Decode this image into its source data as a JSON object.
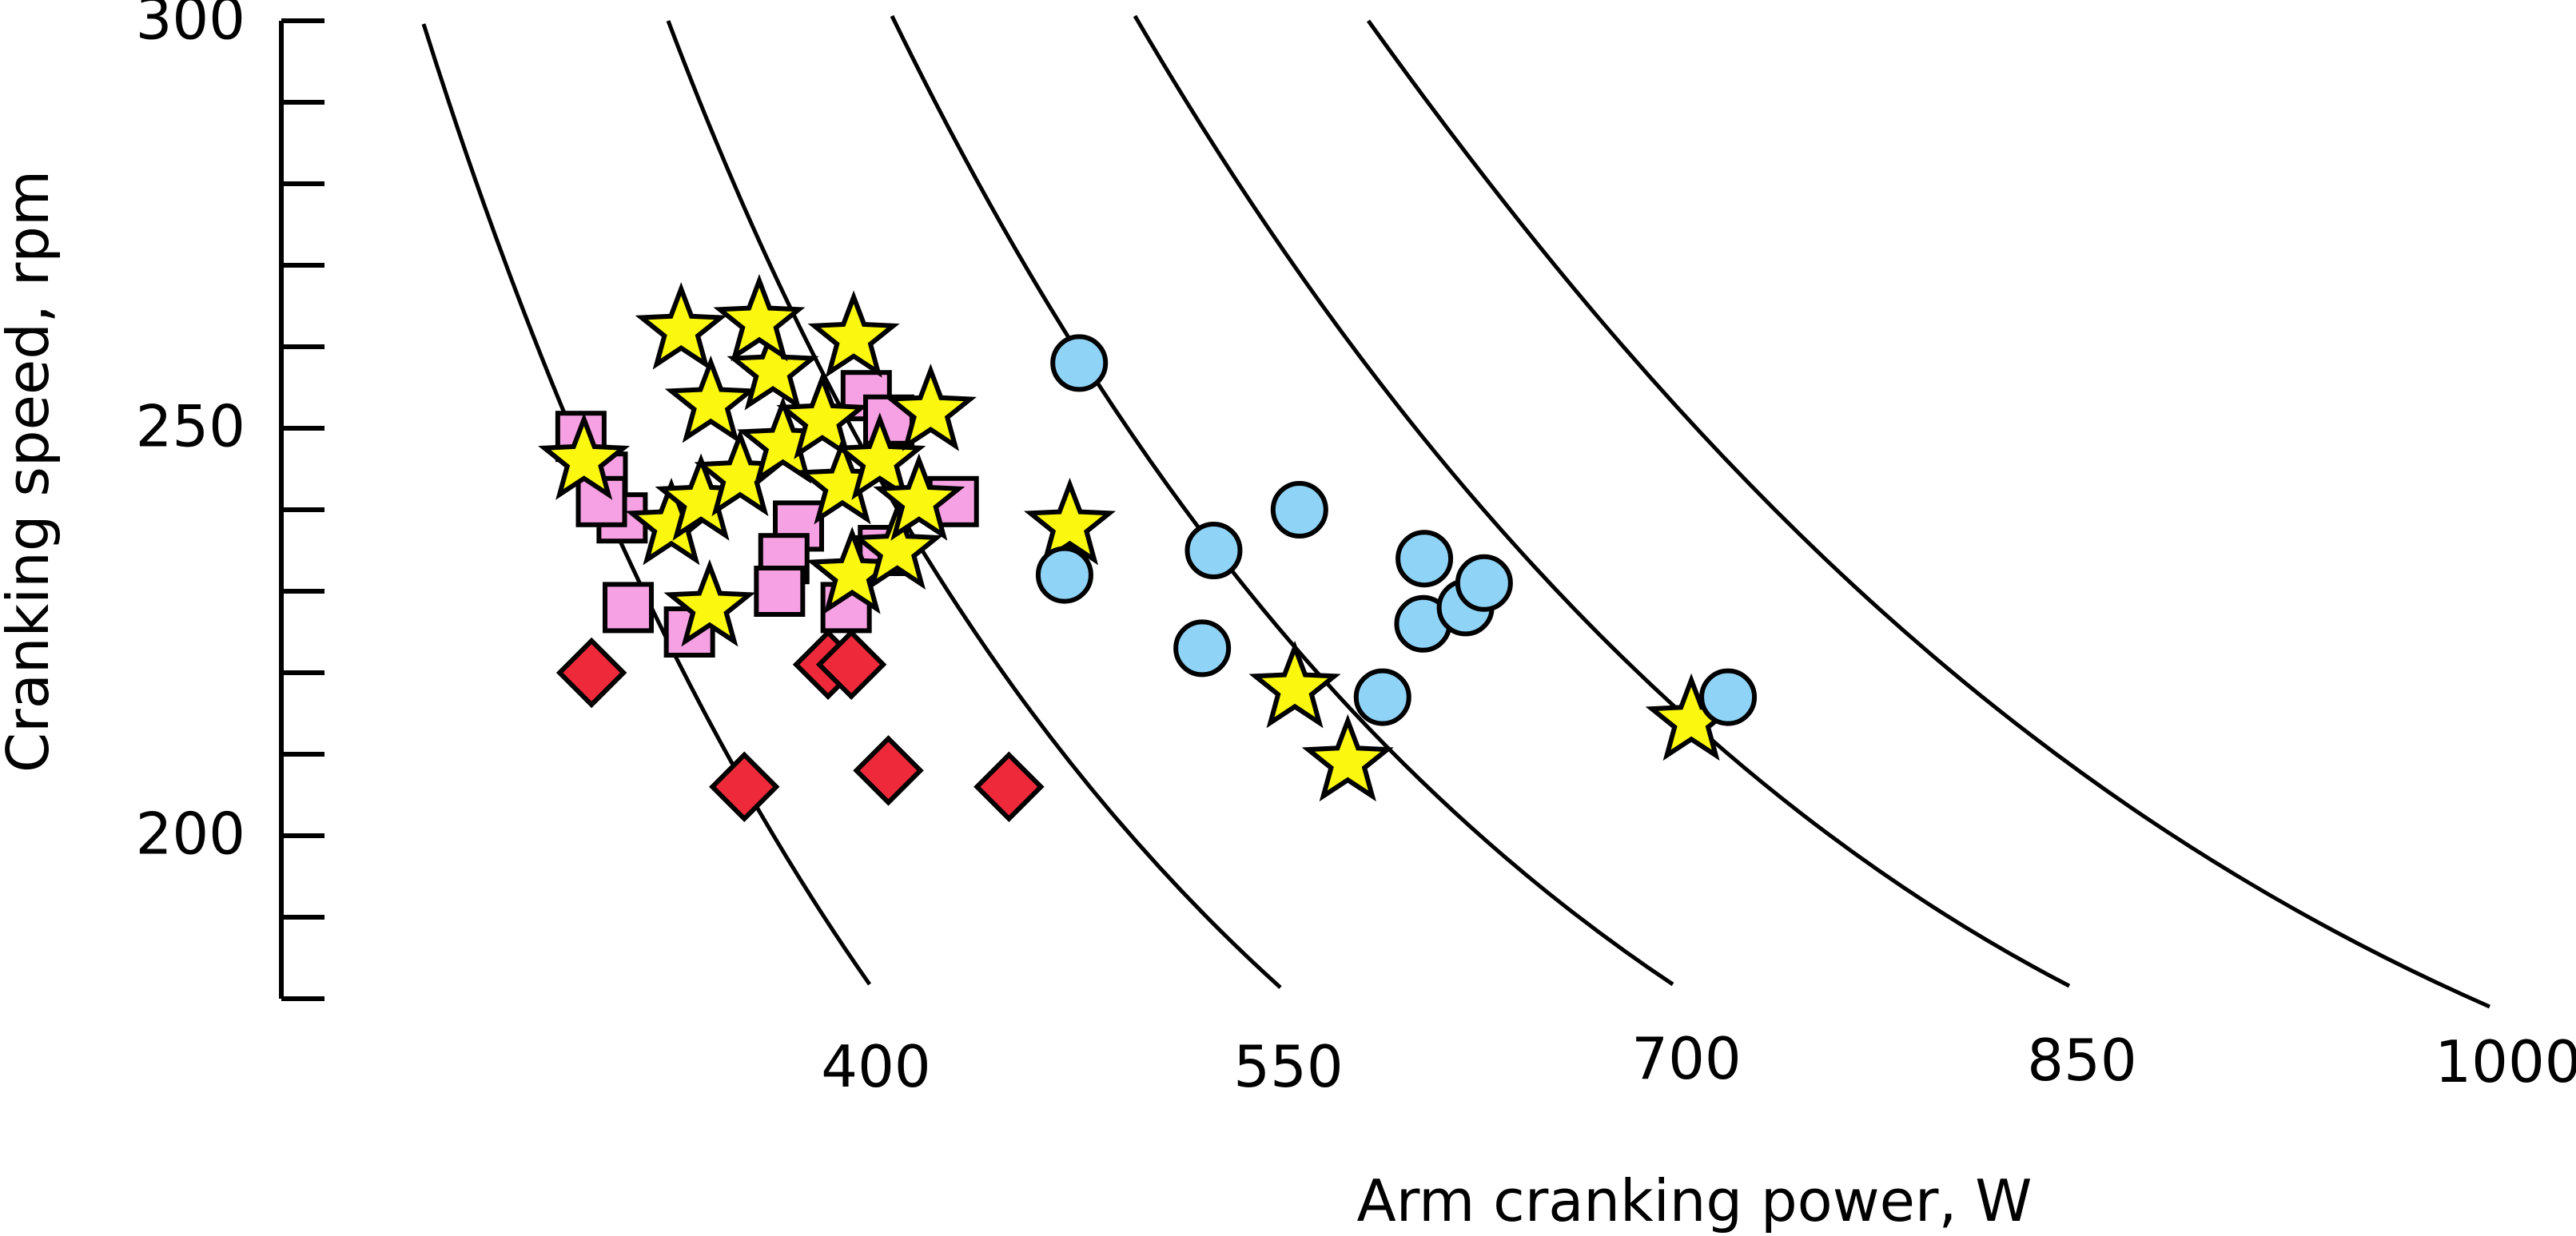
{
  "chart_data": {
    "type": "scatter",
    "title": "",
    "xlabel": "Arm cranking power, W",
    "ylabel": "Cranking speed, rpm",
    "ylim": [
      180,
      300
    ],
    "y_major_ticks": [
      "200",
      "250",
      "300"
    ],
    "y_minor_step": 10,
    "isopower_labels": [
      "400",
      "550",
      "700",
      "850",
      "1000"
    ],
    "isopower_curves": [
      {
        "label": "400",
        "power_w": 400
      },
      {
        "label": "550",
        "power_w": 550
      },
      {
        "label": "700",
        "power_w": 700
      },
      {
        "label": "850",
        "power_w": 850
      },
      {
        "label": "1000",
        "power_w": 1000
      }
    ],
    "grid": false,
    "legend": "none",
    "series": [
      {
        "marker": "diamond",
        "color": "#ee2a3a",
        "points": [
          {
            "power_w": 356,
            "rpm": 220
          },
          {
            "power_w": 399,
            "rpm": 206
          },
          {
            "power_w": 470,
            "rpm": 221
          },
          {
            "power_w": 481,
            "rpm": 221
          },
          {
            "power_w": 467,
            "rpm": 208
          },
          {
            "power_w": 515,
            "rpm": 206
          }
        ]
      },
      {
        "marker": "square",
        "color": "#f6a1e3",
        "points": [
          {
            "power_w": 404,
            "rpm": 249
          },
          {
            "power_w": 405,
            "rpm": 244
          },
          {
            "power_w": 406,
            "rpm": 239
          },
          {
            "power_w": 400,
            "rpm": 241
          },
          {
            "power_w": 388,
            "rpm": 228
          },
          {
            "power_w": 413,
            "rpm": 225
          },
          {
            "power_w": 495,
            "rpm": 238
          },
          {
            "power_w": 478,
            "rpm": 234
          },
          {
            "power_w": 467,
            "rpm": 230
          },
          {
            "power_w": 495,
            "rpm": 228
          },
          {
            "power_w": 531,
            "rpm": 235
          },
          {
            "power_w": 567,
            "rpm": 254
          },
          {
            "power_w": 573,
            "rpm": 251
          },
          {
            "power_w": 581,
            "rpm": 241
          }
        ]
      },
      {
        "marker": "star",
        "color": "#fbf70f",
        "points": [
          {
            "power_w": 400,
            "rpm": 246
          },
          {
            "power_w": 430,
            "rpm": 238
          },
          {
            "power_w": 428,
            "rpm": 228
          },
          {
            "power_w": 451,
            "rpm": 241
          },
          {
            "power_w": 483,
            "rpm": 262
          },
          {
            "power_w": 481,
            "rpm": 253
          },
          {
            "power_w": 477,
            "rpm": 244
          },
          {
            "power_w": 509,
            "rpm": 248
          },
          {
            "power_w": 508,
            "rpm": 232
          },
          {
            "power_w": 523,
            "rpm": 257
          },
          {
            "power_w": 529,
            "rpm": 263
          },
          {
            "power_w": 537,
            "rpm": 251
          },
          {
            "power_w": 529,
            "rpm": 243
          },
          {
            "power_w": 538,
            "rpm": 235
          },
          {
            "power_w": 556,
            "rpm": 246
          },
          {
            "power_w": 563,
            "rpm": 241
          },
          {
            "power_w": 578,
            "rpm": 261
          },
          {
            "power_w": 598,
            "rpm": 252
          },
          {
            "power_w": 634,
            "rpm": 238
          },
          {
            "power_w": 683,
            "rpm": 218
          },
          {
            "power_w": 676,
            "rpm": 209
          },
          {
            "power_w": 851,
            "rpm": 214
          }
        ]
      },
      {
        "marker": "circle",
        "color": "#8fd3f7",
        "points": [
          {
            "power_w": 614,
            "rpm": 232
          },
          {
            "power_w": 654,
            "rpm": 223
          },
          {
            "power_w": 697,
            "rpm": 258
          },
          {
            "power_w": 698,
            "rpm": 235
          },
          {
            "power_w": 720,
            "rpm": 217
          },
          {
            "power_w": 758,
            "rpm": 240
          },
          {
            "power_w": 770,
            "rpm": 226
          },
          {
            "power_w": 799,
            "rpm": 234
          },
          {
            "power_w": 799,
            "rpm": 228
          },
          {
            "power_w": 819,
            "rpm": 231
          },
          {
            "power_w": 880,
            "rpm": 217
          }
        ]
      }
    ]
  }
}
